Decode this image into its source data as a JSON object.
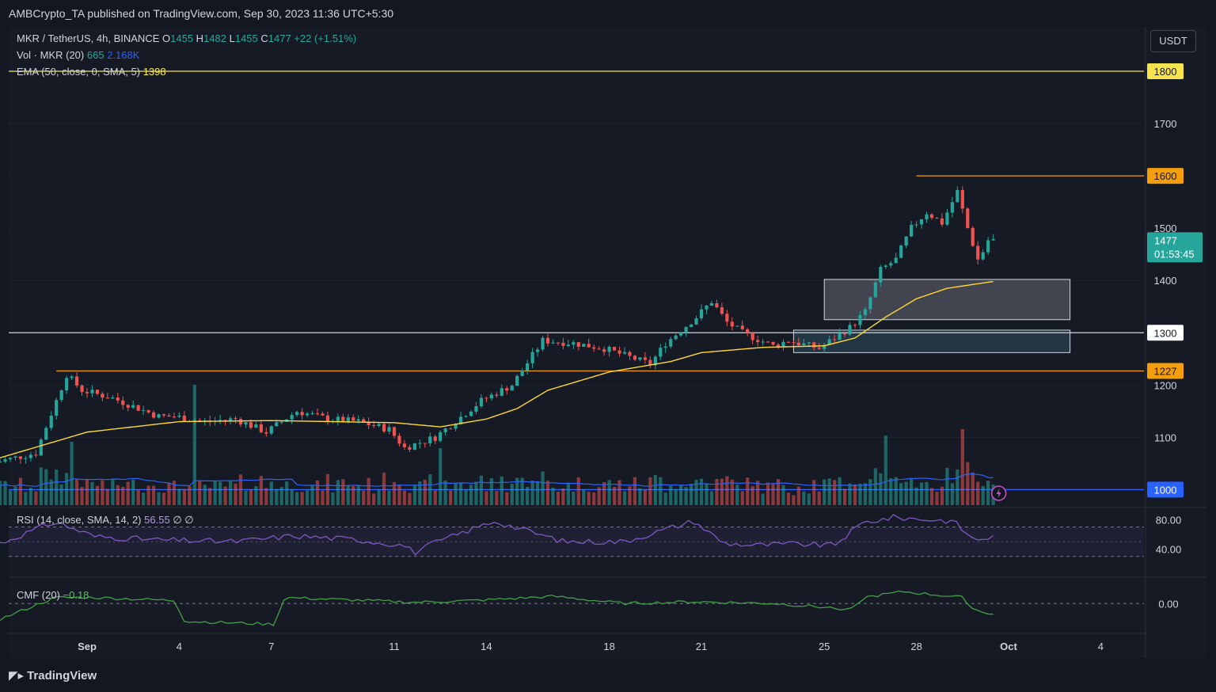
{
  "header": {
    "publisher_line": "AMBCrypto_TA published on TradingView.com, Sep 30, 2023 11:36 UTC+5:30"
  },
  "legend": {
    "symbol": "MKR / TetherUS, 4h, BINANCE",
    "o_label": "O",
    "o_value": "1455",
    "h_label": "H",
    "h_value": "1482",
    "l_label": "L",
    "l_value": "1455",
    "c_label": "C",
    "c_value": "1477",
    "change": "+22 (+1.51%)",
    "vol_label": "Vol · MKR (20)",
    "vol_value": "665",
    "vol_ma": "2.168K",
    "ema_label": "EMA (50, close, 0, SMA, 5)",
    "ema_value": "1398",
    "rsi_label": "RSI (14, close, SMA, 14, 2)",
    "rsi_value": "56.55",
    "rsi_extra1": "∅",
    "rsi_extra2": "∅",
    "cmf_label": "CMF (20)",
    "cmf_value": "−0.18"
  },
  "currency_button": "USDT",
  "footer": {
    "brand": "TradingView"
  },
  "colors": {
    "bg": "#131722",
    "pane_bg": "#161a25",
    "up": "#26a69a",
    "down": "#ef5350",
    "ema": "#fdd835",
    "rsi": "#7e57c2",
    "cmf": "#43a047",
    "line_1800": "#f7e34d",
    "line_1600": "#f59e0b",
    "line_1300": "#d1d4dc",
    "line_1227": "#f59e0b",
    "line_1000": "#2962ff"
  },
  "chart_data": {
    "type": "candlestick",
    "title": "",
    "x_ticks": [
      "Sep",
      "4",
      "7",
      "11",
      "14",
      "18",
      "21",
      "25",
      "28",
      "Oct",
      "4"
    ],
    "y_ticks": [
      1100,
      1200,
      1300,
      1400,
      1500,
      1600,
      1700
    ],
    "ylim": [
      1000,
      1870
    ],
    "last_price": {
      "value": "1477",
      "countdown": "01:53:45"
    },
    "horizontal_levels": [
      {
        "value": 1800,
        "label": "1800",
        "color": "#f7e34d"
      },
      {
        "value": 1600,
        "label": "1600",
        "color": "#f59e0b"
      },
      {
        "value": 1300,
        "label": "1300",
        "color": "#d1d4dc"
      },
      {
        "value": 1227,
        "label": "1227",
        "color": "#f59e0b"
      },
      {
        "value": 1000,
        "label": "1000",
        "color": "#2962ff"
      }
    ],
    "zones": [
      {
        "name": "supply-box",
        "date_from": "Sep 25",
        "date_to": "Oct 3",
        "price_from": 1325,
        "price_to": 1402,
        "color": "#9598a1"
      },
      {
        "name": "demand-box",
        "date_from": "Sep 24",
        "date_to": "Oct 3",
        "price_from": 1262,
        "price_to": 1305,
        "color": "#3b6e7a"
      }
    ],
    "price_keypoints": [
      [
        "Aug 29 00:00",
        1050
      ],
      [
        "Aug 30 12:00",
        1070
      ],
      [
        "Aug 31 12:00",
        1220
      ],
      [
        "Sep 1 00:00",
        1190
      ],
      [
        "Sep 2 00:00",
        1175
      ],
      [
        "Sep 3 12:00",
        1140
      ],
      [
        "Sep 4 00:00",
        1140
      ],
      [
        "Sep 5 00:00",
        1130
      ],
      [
        "Sep 6 00:00",
        1135
      ],
      [
        "Sep 7 00:00",
        1110
      ],
      [
        "Sep 8 00:00",
        1150
      ],
      [
        "Sep 9 00:00",
        1135
      ],
      [
        "Sep 10 00:00",
        1130
      ],
      [
        "Sep 11 00:00",
        1115
      ],
      [
        "Sep 11 12:00",
        1080
      ],
      [
        "Sep 12 12:00",
        1100
      ],
      [
        "Sep 14 00:00",
        1170
      ],
      [
        "Sep 15 00:00",
        1200
      ],
      [
        "Sep 16 00:00",
        1285
      ],
      [
        "Sep 17 00:00",
        1280
      ],
      [
        "Sep 18 00:00",
        1270
      ],
      [
        "Sep 19 12:00",
        1240
      ],
      [
        "Sep 20 00:00",
        1280
      ],
      [
        "Sep 21 00:00",
        1330
      ],
      [
        "Sep 21 12:00",
        1360
      ],
      [
        "Sep 22 00:00",
        1320
      ],
      [
        "Sep 22 12:00",
        1300
      ],
      [
        "Sep 23 12:00",
        1275
      ],
      [
        "Sep 24 00:00",
        1285
      ],
      [
        "Sep 25 00:00",
        1270
      ],
      [
        "Sep 26 00:00",
        1310
      ],
      [
        "Sep 26 12:00",
        1340
      ],
      [
        "Sep 27 00:00",
        1420
      ],
      [
        "Sep 27 12:00",
        1440
      ],
      [
        "Sep 28 00:00",
        1500
      ],
      [
        "Sep 28 12:00",
        1530
      ],
      [
        "Sep 29 00:00",
        1510
      ],
      [
        "Sep 29 12:00",
        1570
      ],
      [
        "Sep 29 20:00",
        1500
      ],
      [
        "Sep 30 04:00",
        1440
      ],
      [
        "Sep 30 08:00",
        1455
      ],
      [
        "Sep 30 12:00",
        1477
      ]
    ],
    "ema_keypoints": [
      [
        "Aug 29 00:00",
        1058
      ],
      [
        "Sep 1 00:00",
        1110
      ],
      [
        "Sep 4 00:00",
        1130
      ],
      [
        "Sep 7 00:00",
        1132
      ],
      [
        "Sep 11 00:00",
        1128
      ],
      [
        "Sep 12 12:00",
        1120
      ],
      [
        "Sep 14 00:00",
        1135
      ],
      [
        "Sep 15 00:00",
        1155
      ],
      [
        "Sep 16 00:00",
        1190
      ],
      [
        "Sep 18 00:00",
        1225
      ],
      [
        "Sep 20 00:00",
        1245
      ],
      [
        "Sep 21 00:00",
        1262
      ],
      [
        "Sep 23 00:00",
        1272
      ],
      [
        "Sep 25 00:00",
        1275
      ],
      [
        "Sep 26 00:00",
        1290
      ],
      [
        "Sep 27 00:00",
        1330
      ],
      [
        "Sep 28 00:00",
        1365
      ],
      [
        "Sep 29 00:00",
        1385
      ],
      [
        "Sep 30 12:00",
        1398
      ]
    ],
    "volume_pane": {
      "ma_label": "Vol MA",
      "spikes": [
        [
          "Aug 31 12:00",
          1.0
        ],
        [
          "Sep 4 12:00",
          1.9
        ],
        [
          "Sep 12 12:00",
          0.9
        ],
        [
          "Sep 27 00:00",
          1.1
        ],
        [
          "Sep 29 12:00",
          1.2
        ]
      ]
    },
    "rsi_pane": {
      "ticks": [
        "80.00",
        "40.00"
      ],
      "levels": [
        70,
        30
      ],
      "ylim": [
        20,
        90
      ],
      "keypoints": [
        [
          0,
          45
        ],
        [
          0.06,
          77
        ],
        [
          0.1,
          57
        ],
        [
          0.17,
          52
        ],
        [
          0.24,
          50
        ],
        [
          0.3,
          58
        ],
        [
          0.36,
          53
        ],
        [
          0.41,
          45
        ],
        [
          0.42,
          35
        ],
        [
          0.44,
          48
        ],
        [
          0.5,
          78
        ],
        [
          0.57,
          50
        ],
        [
          0.63,
          50
        ],
        [
          0.7,
          78
        ],
        [
          0.73,
          48
        ],
        [
          0.76,
          45
        ],
        [
          0.8,
          47
        ],
        [
          0.84,
          45
        ],
        [
          0.87,
          76
        ],
        [
          0.9,
          83
        ],
        [
          0.96,
          78
        ],
        [
          0.98,
          53
        ],
        [
          1,
          56
        ]
      ]
    },
    "cmf_pane": {
      "ticks": [
        "0.00"
      ],
      "ylim": [
        -0.45,
        0.35
      ],
      "keypoints": [
        [
          0,
          -0.3
        ],
        [
          0.06,
          0.1
        ],
        [
          0.1,
          0.1
        ],
        [
          0.18,
          0.05
        ],
        [
          0.19,
          -0.3
        ],
        [
          0.28,
          -0.35
        ],
        [
          0.29,
          0.1
        ],
        [
          0.42,
          0.02
        ],
        [
          0.48,
          0.05
        ],
        [
          0.56,
          0.12
        ],
        [
          0.63,
          0.0
        ],
        [
          0.7,
          0.03
        ],
        [
          0.78,
          0.0
        ],
        [
          0.86,
          -0.1
        ],
        [
          0.87,
          0.1
        ],
        [
          0.91,
          0.2
        ],
        [
          0.97,
          0.1
        ],
        [
          0.98,
          -0.1
        ],
        [
          1,
          -0.18
        ]
      ]
    }
  }
}
